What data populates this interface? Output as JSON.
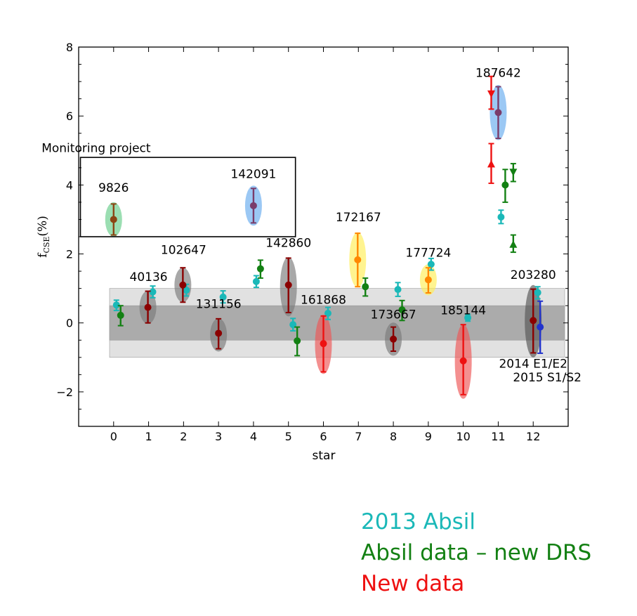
{
  "chart_data": {
    "type": "scatter",
    "xlabel": "star",
    "ylabel_main": "f",
    "ylabel_sub": "CSE",
    "ylabel_unit": "(%)",
    "xticks": [
      "0",
      "1",
      "2",
      "3",
      "4",
      "5",
      "6",
      "7",
      "8",
      "9",
      "10",
      "11",
      "12"
    ],
    "yticks": [
      "−2",
      "0",
      "2",
      "4",
      "6",
      "8"
    ],
    "xlim": [
      -1.0,
      13.0
    ],
    "ylim": [
      -3,
      8
    ],
    "grid": false,
    "bands": [
      {
        "y0": -1,
        "y1": 1,
        "color": "#dcdcdc"
      },
      {
        "y0": -0.5,
        "y1": 0.5,
        "color": "#a8a8a8"
      }
    ],
    "box": {
      "label": "Monitoring project",
      "x0": -0.95,
      "x1": 5.2,
      "y0": 2.5,
      "y1": 4.8
    },
    "ellipses": [
      {
        "x": 0.0,
        "y": 3.0,
        "ry": 0.5,
        "color": "#66cc88"
      },
      {
        "x": 0.98,
        "y": 0.45,
        "ry": 0.48,
        "color": "#7a7a7a"
      },
      {
        "x": 1.98,
        "y": 1.1,
        "ry": 0.5,
        "color": "#7a7a7a"
      },
      {
        "x": 3.0,
        "y": -0.35,
        "ry": 0.48,
        "color": "#7a7a7a"
      },
      {
        "x": 4.0,
        "y": 3.4,
        "ry": 0.58,
        "color": "#66aaee"
      },
      {
        "x": 5.0,
        "y": 1.05,
        "ry": 0.86,
        "color": "#7a7a7a"
      },
      {
        "x": 6.0,
        "y": -0.62,
        "ry": 0.86,
        "color": "#ee5555"
      },
      {
        "x": 6.98,
        "y": 1.83,
        "ry": 0.8,
        "color": "#ffee55"
      },
      {
        "x": 8.0,
        "y": -0.47,
        "ry": 0.48,
        "color": "#7a7a7a"
      },
      {
        "x": 9.0,
        "y": 1.25,
        "ry": 0.45,
        "color": "#ffee55"
      },
      {
        "x": 10.0,
        "y": -1.12,
        "ry": 1.08,
        "color": "#ee5555"
      },
      {
        "x": 11.0,
        "y": 6.1,
        "ry": 0.8,
        "color": "#66aaee"
      },
      {
        "x": 12.0,
        "y": 0.05,
        "ry": 1.05,
        "color": "#555555"
      }
    ],
    "series": [
      {
        "name": "2013 Absil",
        "color": "#1ab8b8",
        "points": [
          {
            "x": 0.08,
            "y": 0.52,
            "lo": 0.36,
            "hi": 0.66
          },
          {
            "x": 1.12,
            "y": 0.9,
            "lo": 0.73,
            "hi": 1.07
          },
          {
            "x": 2.08,
            "y": 0.95,
            "lo": 0.78,
            "hi": 1.12
          },
          {
            "x": 3.13,
            "y": 0.75,
            "lo": 0.58,
            "hi": 0.93
          },
          {
            "x": 4.08,
            "y": 1.2,
            "lo": 1.03,
            "hi": 1.37
          },
          {
            "x": 5.13,
            "y": -0.05,
            "lo": -0.23,
            "hi": 0.13
          },
          {
            "x": 6.13,
            "y": 0.28,
            "lo": 0.1,
            "hi": 0.45
          },
          {
            "x": 8.13,
            "y": 0.97,
            "lo": 0.77,
            "hi": 1.17
          },
          {
            "x": 9.08,
            "y": 1.7,
            "lo": 1.53,
            "hi": 1.87
          },
          {
            "x": 10.13,
            "y": 0.15,
            "lo": 0.05,
            "hi": 0.25
          },
          {
            "x": 11.08,
            "y": 3.07,
            "lo": 2.88,
            "hi": 3.27
          },
          {
            "x": 12.13,
            "y": 0.88,
            "lo": 0.7,
            "hi": 1.05
          }
        ]
      },
      {
        "name": "Absil data - new DRS",
        "color": "#138013",
        "points": [
          {
            "x": 0.2,
            "y": 0.22,
            "lo": -0.08,
            "hi": 0.5
          },
          {
            "x": 4.2,
            "y": 1.57,
            "lo": 1.3,
            "hi": 1.82
          },
          {
            "x": 5.25,
            "y": -0.52,
            "lo": -0.95,
            "hi": -0.12
          },
          {
            "x": 7.2,
            "y": 1.05,
            "lo": 0.78,
            "hi": 1.3
          },
          {
            "x": 8.25,
            "y": 0.38,
            "lo": 0.07,
            "hi": 0.65
          },
          {
            "x": 11.2,
            "y": 4.0,
            "lo": 3.5,
            "hi": 4.45
          },
          {
            "x": 11.43,
            "y": 4.38,
            "lo": 4.1,
            "hi": 4.62,
            "marker": "triangle-down"
          },
          {
            "x": 11.43,
            "y": 2.27,
            "lo": 2.05,
            "hi": 2.55,
            "marker": "triangle-up"
          }
        ]
      },
      {
        "name": "New data",
        "color": "#ee1111",
        "points": [
          {
            "x": 6.0,
            "y": -0.6,
            "lo": -1.42,
            "hi": 0.2
          },
          {
            "x": 10.0,
            "y": -1.1,
            "lo": -2.08,
            "hi": -0.05
          },
          {
            "x": 10.8,
            "y": 4.6,
            "lo": 4.05,
            "hi": 5.2,
            "marker": "triangle-up"
          },
          {
            "x": 10.8,
            "y": 6.65,
            "lo": 6.2,
            "hi": 7.15,
            "marker": "triangle-down"
          }
        ]
      },
      {
        "name": "",
        "color": "#8b0000",
        "points": [
          {
            "x": 0.98,
            "y": 0.45,
            "lo": 0.0,
            "hi": 0.92
          },
          {
            "x": 1.98,
            "y": 1.1,
            "lo": 0.6,
            "hi": 1.6
          },
          {
            "x": 3.0,
            "y": -0.3,
            "lo": -0.75,
            "hi": 0.12
          },
          {
            "x": 5.0,
            "y": 1.1,
            "lo": 0.3,
            "hi": 1.88
          },
          {
            "x": 8.0,
            "y": -0.47,
            "lo": -0.82,
            "hi": -0.12
          },
          {
            "x": 12.0,
            "y": 0.07,
            "lo": -0.87,
            "hi": 0.98
          }
        ]
      },
      {
        "name": "",
        "color": "#8b4513",
        "points": [
          {
            "x": 0.0,
            "y": 3.0,
            "lo": 2.55,
            "hi": 3.45
          }
        ]
      },
      {
        "name": "",
        "color": "#7a3c6a",
        "points": [
          {
            "x": 4.0,
            "y": 3.4,
            "lo": 2.9,
            "hi": 3.9
          },
          {
            "x": 11.0,
            "y": 6.1,
            "lo": 5.35,
            "hi": 6.85
          }
        ]
      },
      {
        "name": "",
        "color": "#ff8800",
        "points": [
          {
            "x": 6.98,
            "y": 1.83,
            "lo": 1.05,
            "hi": 2.6
          },
          {
            "x": 9.0,
            "y": 1.25,
            "lo": 0.87,
            "hi": 1.6
          }
        ]
      },
      {
        "name": "",
        "color": "#2233cc",
        "points": [
          {
            "x": 12.2,
            "y": -0.12,
            "lo": -0.88,
            "hi": 0.63
          }
        ]
      }
    ],
    "annotations": [
      {
        "text": "Monitoring project",
        "x": -0.5,
        "y": 4.95
      },
      {
        "text": "9826",
        "x": 0.0,
        "y": 3.8
      },
      {
        "text": "142091",
        "x": 4.0,
        "y": 4.2
      },
      {
        "text": "102647",
        "x": 2.0,
        "y": 2.0
      },
      {
        "text": "142860",
        "x": 5.0,
        "y": 2.2
      },
      {
        "text": "172167",
        "x": 7.0,
        "y": 2.95
      },
      {
        "text": "177724",
        "x": 9.0,
        "y": 1.92
      },
      {
        "text": "187642",
        "x": 11.0,
        "y": 7.13
      },
      {
        "text": "203280",
        "x": 12.0,
        "y": 1.28
      },
      {
        "text": "40136",
        "x": 1.0,
        "y": 1.22
      },
      {
        "text": "131156",
        "x": 3.0,
        "y": 0.43
      },
      {
        "text": "161868",
        "x": 6.0,
        "y": 0.55
      },
      {
        "text": "173667",
        "x": 8.0,
        "y": 0.13
      },
      {
        "text": "185144",
        "x": 10.0,
        "y": 0.25
      },
      {
        "text": "2014 E1/E2",
        "x": 12.0,
        "y": -1.3
      },
      {
        "text": "2015 S1/S2",
        "x": 12.4,
        "y": -1.7
      }
    ]
  },
  "legend": {
    "items": [
      {
        "label": "2013 Absil",
        "color": "#1ab8b8"
      },
      {
        "label": "Absil data – new DRS",
        "color": "#138013"
      },
      {
        "label": "New data",
        "color": "#ee1111"
      }
    ]
  }
}
